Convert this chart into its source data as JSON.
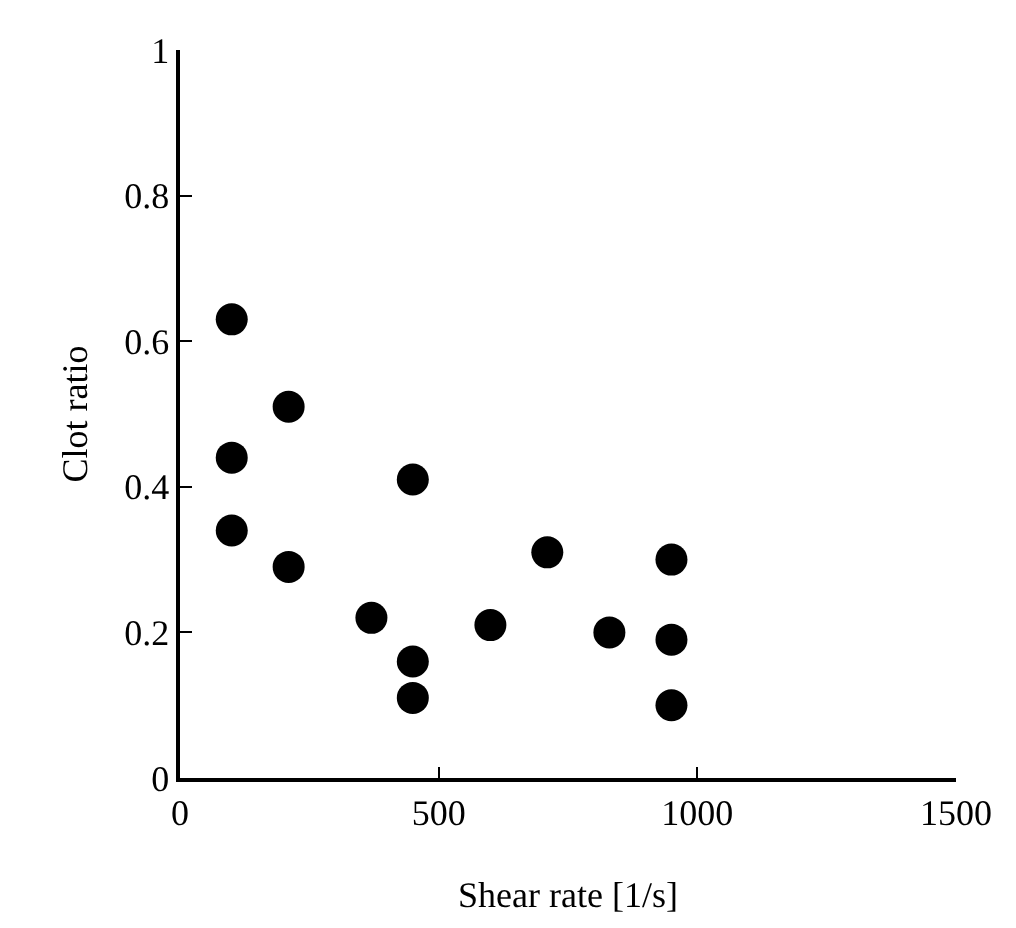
{
  "chart_data": {
    "type": "scatter",
    "xlabel": "Shear rate [1/s]",
    "ylabel": "Clot ratio",
    "x": [
      100,
      100,
      100,
      210,
      210,
      370,
      450,
      450,
      450,
      600,
      710,
      830,
      950,
      950,
      950
    ],
    "values": [
      0.63,
      0.44,
      0.34,
      0.51,
      0.29,
      0.22,
      0.41,
      0.16,
      0.11,
      0.21,
      0.31,
      0.2,
      0.3,
      0.19,
      0.1
    ],
    "color": "#000000",
    "marker": "circle",
    "xlim": [
      0,
      1500
    ],
    "xticks": [
      0,
      500,
      1000,
      1500
    ],
    "ylim": [
      0,
      1
    ],
    "yticks": [
      0,
      0.2,
      0.4,
      0.6,
      0.8,
      1
    ],
    "grid": false,
    "legend": false
  }
}
